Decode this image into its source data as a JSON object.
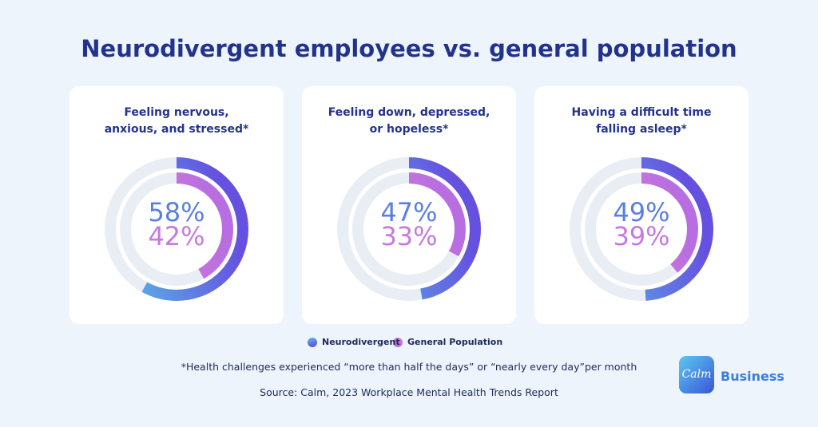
{
  "title": "Neurodivergent employees vs. general population",
  "legend": [
    {
      "name": "Neurodivergent",
      "colors": [
        "#58bde6",
        "#6650e0"
      ]
    },
    {
      "name": "General Population",
      "colors": [
        "#e07fd6",
        "#b86ee0"
      ]
    }
  ],
  "chart_data": [
    {
      "type": "radial",
      "title": "Feeling nervous,\nanxious, and stressed*",
      "ylim": [
        0,
        100
      ],
      "series": [
        {
          "values": [
            58
          ],
          "value_labels": [
            "58%"
          ]
        },
        {
          "values": [
            42
          ],
          "value_labels": [
            "42%"
          ]
        }
      ]
    },
    {
      "type": "radial",
      "title": "Feeling down, depressed,\nor hopeless*",
      "ylim": [
        0,
        100
      ],
      "series": [
        {
          "values": [
            47
          ],
          "value_labels": [
            "47%"
          ]
        },
        {
          "values": [
            33
          ],
          "value_labels": [
            "33%"
          ]
        }
      ]
    },
    {
      "type": "radial",
      "title": "Having a difficult time\nfalling asleep*",
      "ylim": [
        0,
        100
      ],
      "series": [
        {
          "values": [
            49
          ],
          "value_labels": [
            "49%"
          ]
        },
        {
          "values": [
            39
          ],
          "value_labels": [
            "39%"
          ]
        }
      ]
    }
  ],
  "footnote": "*Health challenges experienced “more than half the days” or “nearly every day”per month",
  "source": "Source: Calm, 2023 Workplace Mental Health Trends Report",
  "logo": {
    "mark": "Calm",
    "text": "Business"
  }
}
